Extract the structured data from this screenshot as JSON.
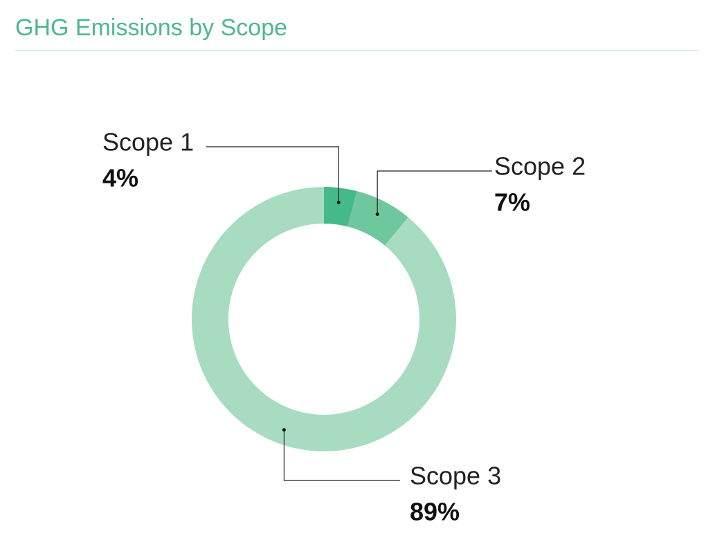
{
  "chart_data": {
    "type": "donut",
    "title": "GHG Emissions by Scope",
    "categories": [
      "Scope 1",
      "Scope 2",
      "Scope 3"
    ],
    "values": [
      4,
      7,
      89
    ],
    "value_labels": [
      "4%",
      "7%",
      "89%"
    ],
    "colors": [
      "#45b98a",
      "#6fc79d",
      "#a8dcc0"
    ]
  }
}
